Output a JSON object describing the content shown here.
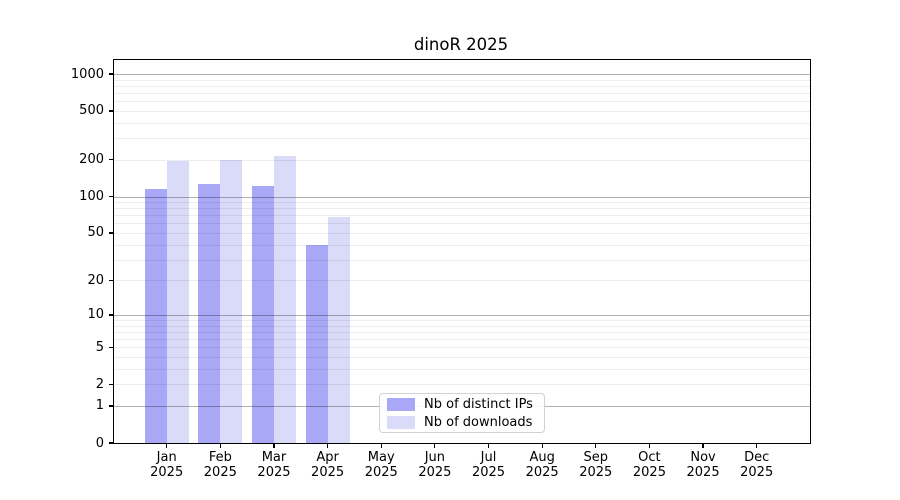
{
  "title": "dinoR 2025",
  "chart_data": {
    "type": "bar",
    "title": "dinoR 2025",
    "scale": "pseudo-log (log1p)",
    "categories": [
      "Jan",
      "Feb",
      "Mar",
      "Apr",
      "May",
      "Jun",
      "Jul",
      "Aug",
      "Sep",
      "Oct",
      "Nov",
      "Dec"
    ],
    "category_year": "2025",
    "series": [
      {
        "name": "Nb of distinct IPs",
        "color": "#a8a8f7",
        "values": [
          115,
          127,
          121,
          40,
          0,
          0,
          0,
          0,
          0,
          0,
          0,
          0
        ]
      },
      {
        "name": "Nb of downloads",
        "color": "#dadaf9",
        "values": [
          196,
          199,
          213,
          68,
          0,
          0,
          0,
          0,
          0,
          0,
          0,
          0
        ]
      }
    ],
    "yticks": [
      0,
      1,
      2,
      5,
      10,
      20,
      50,
      100,
      200,
      500,
      1000
    ],
    "ylim": [
      0,
      1300
    ],
    "xlabel": "",
    "ylabel": "",
    "grid": "horizontal major at powers of 10, minor at 2-9 multiples",
    "legend_position": "lower-center-inside",
    "colors": {
      "major_gridline": "#b3b3b3",
      "minor_gridline": "#ececec",
      "axis": "#000000",
      "background": "#ffffff"
    }
  }
}
